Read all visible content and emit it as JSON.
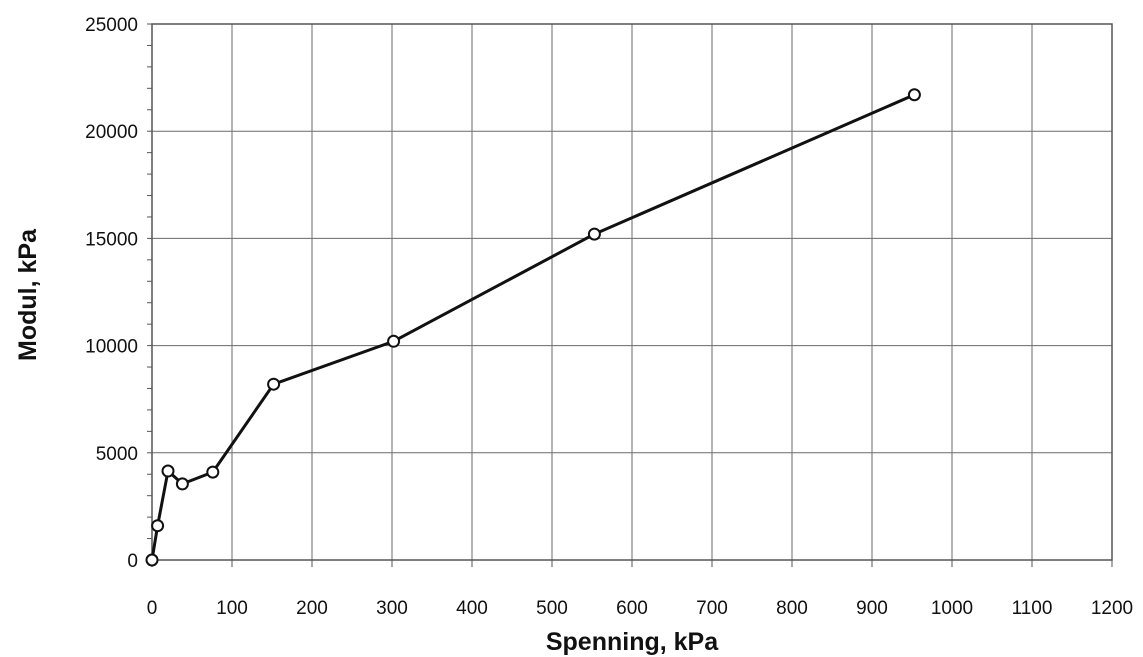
{
  "chart_data": {
    "type": "line",
    "title": "",
    "xlabel": "Spenning, kPa",
    "ylabel": "Modul, kPa",
    "xlim": [
      0,
      1200
    ],
    "ylim": [
      0,
      25000
    ],
    "xticks": [
      0,
      100,
      200,
      300,
      400,
      500,
      600,
      700,
      800,
      900,
      1000,
      1100,
      1200
    ],
    "yticks": [
      0,
      5000,
      10000,
      15000,
      20000,
      25000
    ],
    "grid": true,
    "legend": "none",
    "line_color": "#111111",
    "marker": "open-circle",
    "series": [
      {
        "x": [
          0,
          7,
          20,
          38,
          76,
          152,
          302,
          553,
          953
        ],
        "y": [
          0,
          1600,
          4150,
          3550,
          4100,
          8200,
          10200,
          15200,
          21700
        ]
      }
    ]
  }
}
